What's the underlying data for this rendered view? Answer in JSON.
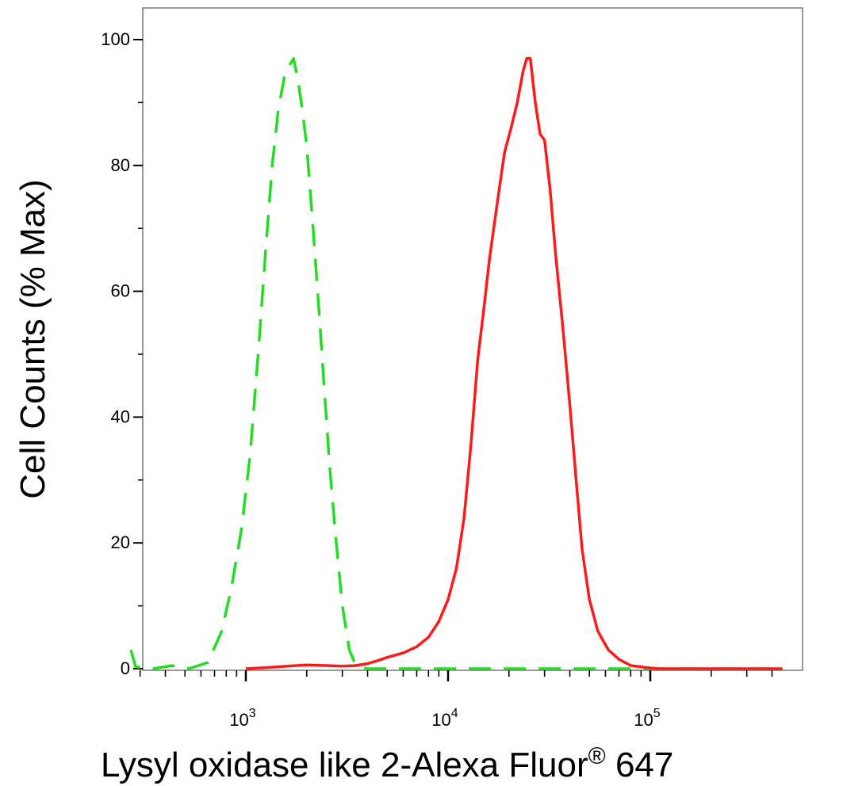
{
  "chart_data": {
    "type": "line",
    "title": "",
    "xlabel": {
      "main": "Lysyl oxidase like 2-Alexa Fluor",
      "superscript": "®",
      "suffix": " 647"
    },
    "ylabel": "Cell Counts (% Max)",
    "x_scale": "log",
    "xlim": [
      270,
      450000
    ],
    "ylim": [
      0,
      105
    ],
    "y_ticks": [
      0,
      20,
      40,
      60,
      80,
      100
    ],
    "y_tick_labels": [
      "0",
      "20",
      "40",
      "60",
      "80",
      "100"
    ],
    "x_major_ticks": [
      {
        "value": 1000,
        "base": "10",
        "exp": "3"
      },
      {
        "value": 10000,
        "base": "10",
        "exp": "4"
      },
      {
        "value": 100000,
        "base": "10",
        "exp": "5"
      }
    ],
    "grid": false,
    "legend": "none",
    "series": [
      {
        "color": "#22dd22",
        "style": "dashed",
        "points": [
          [
            270,
            3
          ],
          [
            285,
            0.3
          ],
          [
            350,
            0
          ],
          [
            430,
            0.5
          ],
          [
            520,
            0
          ],
          [
            650,
            1
          ],
          [
            760,
            6
          ],
          [
            850,
            13
          ],
          [
            950,
            22
          ],
          [
            1050,
            34
          ],
          [
            1150,
            50
          ],
          [
            1250,
            66
          ],
          [
            1350,
            80
          ],
          [
            1450,
            89
          ],
          [
            1550,
            94
          ],
          [
            1650,
            96
          ],
          [
            1720,
            97
          ],
          [
            1800,
            94
          ],
          [
            1900,
            89
          ],
          [
            2000,
            83
          ],
          [
            2150,
            70
          ],
          [
            2300,
            57
          ],
          [
            2450,
            44
          ],
          [
            2600,
            32
          ],
          [
            2800,
            20
          ],
          [
            3000,
            10
          ],
          [
            3250,
            3
          ],
          [
            3500,
            0.5
          ],
          [
            4000,
            0
          ],
          [
            450000,
            0
          ]
        ]
      },
      {
        "color": "#ff1a1a",
        "style": "solid",
        "points": [
          [
            1000,
            0
          ],
          [
            1300,
            0.2
          ],
          [
            1600,
            0.4
          ],
          [
            2000,
            0.6
          ],
          [
            2500,
            0.5
          ],
          [
            3000,
            0.4
          ],
          [
            3500,
            0.5
          ],
          [
            4000,
            0.8
          ],
          [
            4500,
            1.3
          ],
          [
            5000,
            1.8
          ],
          [
            6000,
            2.5
          ],
          [
            7000,
            3.5
          ],
          [
            8000,
            5
          ],
          [
            9000,
            7.5
          ],
          [
            10000,
            11
          ],
          [
            11000,
            16
          ],
          [
            12000,
            24
          ],
          [
            13000,
            36
          ],
          [
            14000,
            49
          ],
          [
            15000,
            57
          ],
          [
            16000,
            65
          ],
          [
            17500,
            74
          ],
          [
            19000,
            82
          ],
          [
            20500,
            86
          ],
          [
            22000,
            90
          ],
          [
            23500,
            95
          ],
          [
            24500,
            97
          ],
          [
            25500,
            97
          ],
          [
            27000,
            90
          ],
          [
            28500,
            85
          ],
          [
            30000,
            84
          ],
          [
            32000,
            76
          ],
          [
            34000,
            66
          ],
          [
            37000,
            54
          ],
          [
            40000,
            42
          ],
          [
            43000,
            30
          ],
          [
            46000,
            19
          ],
          [
            50000,
            11
          ],
          [
            55000,
            6
          ],
          [
            62000,
            3
          ],
          [
            70000,
            1.5
          ],
          [
            80000,
            0.5
          ],
          [
            95000,
            0.2
          ],
          [
            110000,
            0
          ],
          [
            450000,
            0
          ]
        ]
      }
    ]
  }
}
